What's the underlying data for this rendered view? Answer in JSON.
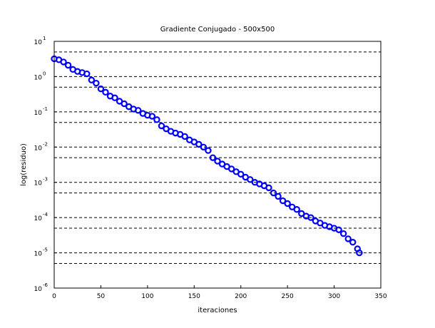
{
  "chart_data": {
    "type": "scatter",
    "title": "Gradiente Conjugado - 500x500",
    "xlabel": "iteraciones",
    "ylabel": "log(residuo)",
    "xlim": [
      0,
      350
    ],
    "ylim": [
      1e-06,
      10
    ],
    "yscale": "log",
    "x_ticks": [
      0,
      50,
      100,
      150,
      200,
      250,
      300,
      350
    ],
    "y_ticks": [
      {
        "base": "10",
        "exp": "1",
        "value": 10
      },
      {
        "base": "10",
        "exp": "0",
        "value": 1
      },
      {
        "base": "10",
        "exp": "-1",
        "value": 0.1
      },
      {
        "base": "10",
        "exp": "-2",
        "value": 0.01
      },
      {
        "base": "10",
        "exp": "-3",
        "value": 0.001
      },
      {
        "base": "10",
        "exp": "-4",
        "value": 0.0001
      },
      {
        "base": "10",
        "exp": "-5",
        "value": 1e-05
      },
      {
        "base": "10",
        "exp": "-6",
        "value": 1e-06
      }
    ],
    "grid": "y-dashed",
    "marker": "circle",
    "marker_color": "#0000ff",
    "points": [
      [
        0,
        3.2
      ],
      [
        5,
        3.0
      ],
      [
        10,
        2.6
      ],
      [
        15,
        2.1
      ],
      [
        20,
        1.6
      ],
      [
        25,
        1.4
      ],
      [
        30,
        1.3
      ],
      [
        35,
        1.2
      ],
      [
        40,
        0.8
      ],
      [
        45,
        0.65
      ],
      [
        50,
        0.45
      ],
      [
        55,
        0.36
      ],
      [
        60,
        0.28
      ],
      [
        65,
        0.25
      ],
      [
        70,
        0.2
      ],
      [
        75,
        0.17
      ],
      [
        80,
        0.14
      ],
      [
        85,
        0.12
      ],
      [
        90,
        0.11
      ],
      [
        95,
        0.09
      ],
      [
        100,
        0.08
      ],
      [
        105,
        0.075
      ],
      [
        110,
        0.06
      ],
      [
        115,
        0.04
      ],
      [
        120,
        0.033
      ],
      [
        125,
        0.028
      ],
      [
        130,
        0.025
      ],
      [
        135,
        0.023
      ],
      [
        140,
        0.02
      ],
      [
        145,
        0.016
      ],
      [
        150,
        0.014
      ],
      [
        155,
        0.012
      ],
      [
        160,
        0.01
      ],
      [
        165,
        0.008
      ],
      [
        170,
        0.005
      ],
      [
        175,
        0.004
      ],
      [
        180,
        0.0033
      ],
      [
        185,
        0.0028
      ],
      [
        190,
        0.0024
      ],
      [
        195,
        0.002
      ],
      [
        200,
        0.0017
      ],
      [
        205,
        0.0014
      ],
      [
        210,
        0.0012
      ],
      [
        215,
        0.001
      ],
      [
        220,
        0.0009
      ],
      [
        225,
        0.0008
      ],
      [
        230,
        0.0007
      ],
      [
        235,
        0.0005
      ],
      [
        240,
        0.0004
      ],
      [
        245,
        0.0003
      ],
      [
        250,
        0.00025
      ],
      [
        255,
        0.0002
      ],
      [
        260,
        0.00017
      ],
      [
        265,
        0.00013
      ],
      [
        270,
        0.00011
      ],
      [
        275,
        0.0001
      ],
      [
        280,
        8e-05
      ],
      [
        285,
        7e-05
      ],
      [
        290,
        6e-05
      ],
      [
        295,
        5.5e-05
      ],
      [
        300,
        5e-05
      ],
      [
        305,
        4.5e-05
      ],
      [
        310,
        3.5e-05
      ],
      [
        315,
        2.5e-05
      ],
      [
        320,
        2e-05
      ],
      [
        325,
        1.3e-05
      ],
      [
        327,
        1e-05
      ]
    ]
  }
}
